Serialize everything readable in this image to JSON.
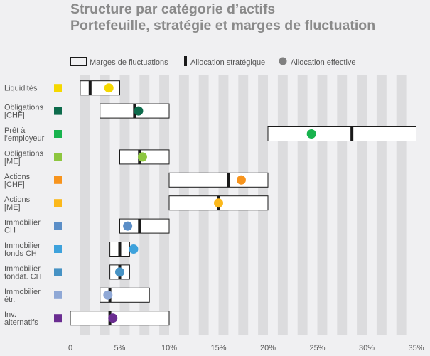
{
  "title": {
    "line1": "Structure par catégorie d’actifs",
    "line2": "Portefeuille, stratégie et marges de fluctuation"
  },
  "legend": {
    "range": "Marges de fluctuations",
    "strategic": "Allocation stratégique",
    "effective": "Allocation effective"
  },
  "colors": {
    "background": "#f0f0f2",
    "stripe": "#dcdcde",
    "text": "#555555",
    "title": "#8a8a8a",
    "marker": "#1a1a1a",
    "legend_dot": "#808080"
  },
  "chart_data": {
    "type": "range-dot",
    "title": "Structure par catégorie d’actifs — Portefeuille, stratégie et marges de fluctuation",
    "xlim": [
      0,
      35
    ],
    "x_ticks": [
      "0",
      "5%",
      "10%",
      "15%",
      "20%",
      "25%",
      "30%",
      "35%"
    ],
    "grid": "alternating vertical stripes",
    "legend_position": "top",
    "categories": [
      {
        "label": [
          "Liquidités"
        ],
        "color": "#f5d800",
        "min": 1,
        "max": 5,
        "strategic": 2,
        "effective": 3.9
      },
      {
        "label": [
          "Obligations",
          "[CHF]"
        ],
        "color": "#0d6b4c",
        "min": 3,
        "max": 10,
        "strategic": 6.5,
        "effective": 6.9
      },
      {
        "label": [
          "Prêt à",
          "l’employeur"
        ],
        "color": "#18b34e",
        "min": 20,
        "max": 35,
        "strategic": 28.5,
        "effective": 24.4
      },
      {
        "label": [
          "Obligations",
          "[ME]"
        ],
        "color": "#8dc63f",
        "min": 5,
        "max": 10,
        "strategic": 7,
        "effective": 7.3
      },
      {
        "label": [
          "Actions",
          "[CHF]"
        ],
        "color": "#f7941d",
        "min": 10,
        "max": 20,
        "strategic": 16,
        "effective": 17.3
      },
      {
        "label": [
          "Actions",
          "[ME]"
        ],
        "color": "#fbb81b",
        "min": 10,
        "max": 20,
        "strategic": 15,
        "effective": 15
      },
      {
        "label": [
          "Immobilier",
          "CH"
        ],
        "color": "#5b8ec7",
        "min": 5,
        "max": 10,
        "strategic": 7,
        "effective": 5.8
      },
      {
        "label": [
          "Immobilier",
          "fonds CH"
        ],
        "color": "#3ea2dc",
        "min": 4,
        "max": 6,
        "strategic": 5,
        "effective": 6.4
      },
      {
        "label": [
          "Immobilier",
          "fondat. CH"
        ],
        "color": "#4692c4",
        "min": 4,
        "max": 6,
        "strategic": 5,
        "effective": 5
      },
      {
        "label": [
          "Immobilier",
          "étr."
        ],
        "color": "#8fa8d6",
        "min": 3,
        "max": 8,
        "strategic": 4,
        "effective": 3.8
      },
      {
        "label": [
          "Inv.",
          "alternatifs"
        ],
        "color": "#6a2d91",
        "min": 0,
        "max": 10,
        "strategic": 4,
        "effective": 4.3
      }
    ]
  }
}
